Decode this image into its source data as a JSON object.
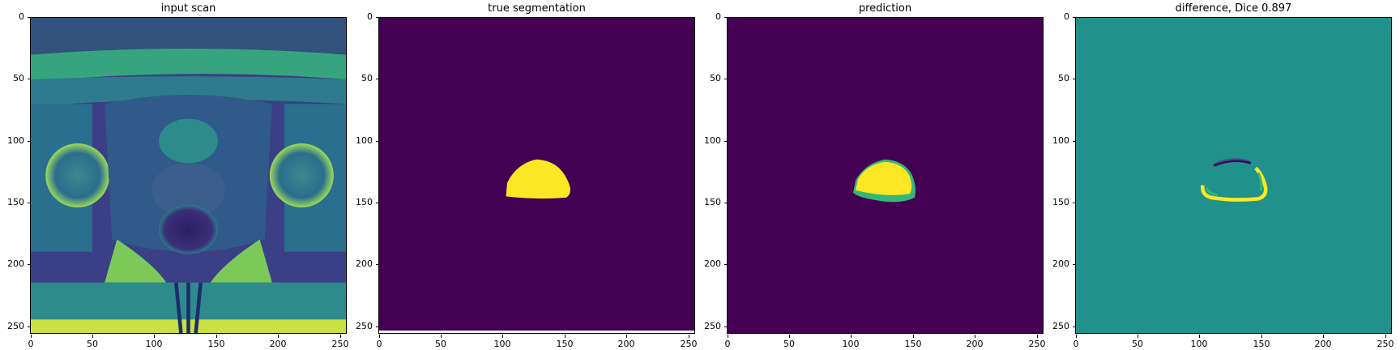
{
  "figure": {
    "colormap": "viridis",
    "colors": {
      "low": "#440154",
      "mid": "#21918c",
      "high": "#fde725",
      "teal_light": "#35b779",
      "blue": "#3b528b"
    },
    "panels": [
      {
        "title": "input scan",
        "image": "mri-scan",
        "yticks": [
          "0",
          "50",
          "100",
          "150",
          "200",
          "250"
        ],
        "xticks": [
          "0",
          "50",
          "100",
          "150",
          "200",
          "250"
        ]
      },
      {
        "title": "true segmentation",
        "image": "segmentation-mask",
        "yticks": [
          "0",
          "50",
          "100",
          "150",
          "200",
          "250"
        ],
        "xticks": [
          "0",
          "50",
          "100",
          "150",
          "200",
          "250"
        ]
      },
      {
        "title": "prediction",
        "image": "prediction-mask",
        "yticks": [
          "0",
          "50",
          "100",
          "150",
          "200",
          "250"
        ],
        "xticks": [
          "0",
          "50",
          "100",
          "150",
          "200",
          "250"
        ]
      },
      {
        "title": "difference, Dice 0.897",
        "image": "difference-map",
        "yticks": [
          "0",
          "50",
          "100",
          "150",
          "200",
          "250"
        ],
        "xticks": [
          "0",
          "50",
          "100",
          "150",
          "200",
          "250"
        ]
      }
    ]
  }
}
